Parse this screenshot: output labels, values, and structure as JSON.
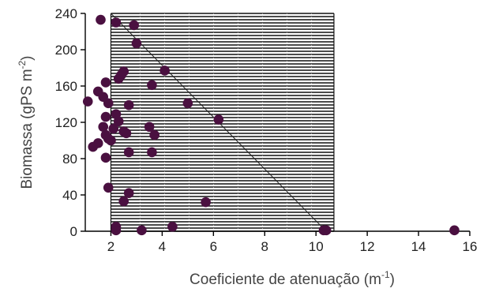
{
  "chart_data": {
    "type": "scatter",
    "xlabel": {
      "main": "Coeficiente de atenuação (m",
      "sup": "-1",
      "close": ")"
    },
    "ylabel": {
      "main": "Biomassa (gPS m",
      "sup": "-2",
      "close": ")"
    },
    "xlim": [
      1,
      16
    ],
    "ylim": [
      0,
      240
    ],
    "xticks": [
      2,
      4,
      6,
      8,
      10,
      12,
      14,
      16
    ],
    "yticks": [
      0,
      40,
      80,
      120,
      160,
      200,
      240
    ],
    "grid": false,
    "hatched_region": {
      "x": [
        2.0,
        10.7
      ],
      "y": [
        0,
        240
      ],
      "pattern": "horizontal-lines"
    },
    "reference_line": {
      "x1": 2.0,
      "y1": 240,
      "x2": 10.4,
      "y2": 0
    },
    "marker_color": "#4a1040",
    "line_color": "#222222",
    "hatch_color": "#111111",
    "points": [
      {
        "x": 1.6,
        "y": 233
      },
      {
        "x": 2.2,
        "y": 230
      },
      {
        "x": 2.9,
        "y": 227
      },
      {
        "x": 3.0,
        "y": 207
      },
      {
        "x": 4.1,
        "y": 177
      },
      {
        "x": 2.5,
        "y": 176
      },
      {
        "x": 2.4,
        "y": 172
      },
      {
        "x": 2.3,
        "y": 168
      },
      {
        "x": 1.8,
        "y": 164
      },
      {
        "x": 3.6,
        "y": 161
      },
      {
        "x": 1.5,
        "y": 154
      },
      {
        "x": 1.7,
        "y": 148
      },
      {
        "x": 1.1,
        "y": 143
      },
      {
        "x": 1.9,
        "y": 141
      },
      {
        "x": 5.0,
        "y": 141
      },
      {
        "x": 2.7,
        "y": 139
      },
      {
        "x": 2.2,
        "y": 129
      },
      {
        "x": 1.8,
        "y": 126
      },
      {
        "x": 2.3,
        "y": 121
      },
      {
        "x": 6.2,
        "y": 123
      },
      {
        "x": 1.7,
        "y": 115
      },
      {
        "x": 3.5,
        "y": 115
      },
      {
        "x": 2.1,
        "y": 113
      },
      {
        "x": 2.5,
        "y": 110
      },
      {
        "x": 2.6,
        "y": 108
      },
      {
        "x": 3.7,
        "y": 106
      },
      {
        "x": 1.8,
        "y": 106
      },
      {
        "x": 1.9,
        "y": 102
      },
      {
        "x": 2.0,
        "y": 100
      },
      {
        "x": 1.5,
        "y": 97
      },
      {
        "x": 1.3,
        "y": 93
      },
      {
        "x": 2.7,
        "y": 87
      },
      {
        "x": 3.6,
        "y": 87
      },
      {
        "x": 1.8,
        "y": 81
      },
      {
        "x": 1.9,
        "y": 48
      },
      {
        "x": 2.7,
        "y": 42
      },
      {
        "x": 2.5,
        "y": 33
      },
      {
        "x": 5.7,
        "y": 32
      },
      {
        "x": 2.2,
        "y": 5
      },
      {
        "x": 4.4,
        "y": 5
      },
      {
        "x": 2.2,
        "y": 1
      },
      {
        "x": 3.2,
        "y": 1
      },
      {
        "x": 10.3,
        "y": 1
      },
      {
        "x": 10.4,
        "y": 1
      },
      {
        "x": 15.4,
        "y": 1
      }
    ]
  }
}
